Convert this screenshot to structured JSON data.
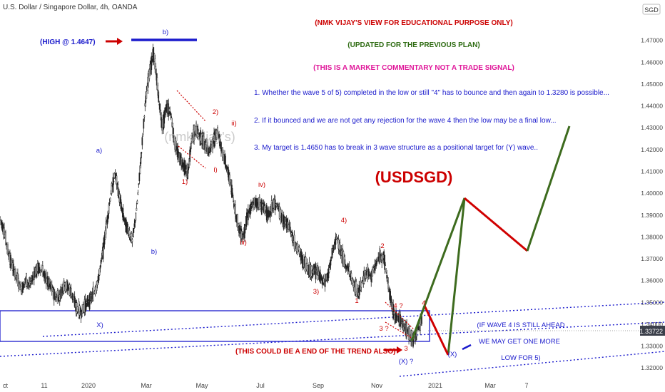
{
  "header": {
    "symbol_title": "U.S. Dollar / Singapore Dollar, 4h, OANDA",
    "currency_badge": "SGD",
    "current_price": "1.33722"
  },
  "notes": {
    "educational": "(NMK VIJAY'S VIEW FOR EDUCATIONAL PURPOSE ONLY)",
    "updated": "(UPDATED FOR THE PREVIOUS PLAN)",
    "commentary": "(THIS IS A MARKET COMMENTARY NOT A TRADE SIGNAL)",
    "point1": "1. Whether the wave 5 of 5) completed in the low or still \"4\" has to bounce and then again to 1.3280 is possible...",
    "point2": "2. If it bounced  and we are not get any rejection for the wave 4 then the low may be a final low...",
    "point3": "3. My target is 1.4650 has to break in 3 wave structure as a positional target for (Y) wave..",
    "ticker": "(USDSGD)",
    "high_label": "(HIGH @ 1.4647)",
    "end_of_trend": "(THIS COULD BE A END OF THE TREND ALSO)",
    "wave4_line1": "(IF  WAVE 4 IS STILL AHEAD",
    "wave4_line2": "WE MAY GET ONE MORE",
    "wave4_line3": "LOW FOR 5)",
    "watermark": "(nmk vijay's)"
  },
  "colors": {
    "red": "#cc0000",
    "blue": "#1a1acc",
    "green": "#2e6b12",
    "magenta": "#e0189a",
    "darkgreen": "#3d6b1e",
    "candle": "#222222"
  },
  "chart_data": {
    "type": "line",
    "title": "U.S. Dollar / Singapore Dollar, 4h, OANDA",
    "x_tick_labels": [
      "ct",
      "11",
      "2020",
      "Mar",
      "May",
      "Jul",
      "Sep",
      "Nov",
      "2021",
      "Mar",
      "7"
    ],
    "y_ticks": [
      1.32,
      1.33,
      1.34,
      1.35,
      1.36,
      1.37,
      1.38,
      1.39,
      1.4,
      1.41,
      1.42,
      1.43,
      1.44,
      1.45,
      1.46,
      1.47
    ],
    "y_tick_labels": [
      "1.32000",
      "1.33000",
      "1.34000",
      "1.35000",
      "1.36000",
      "1.37000",
      "1.38000",
      "1.39000",
      "1.40000",
      "1.41000",
      "1.42000",
      "1.43000",
      "1.44000",
      "1.45000",
      "1.46000",
      "1.47000"
    ],
    "ylim": [
      1.3155,
      1.4885
    ],
    "price_path": [
      1.389,
      1.382,
      1.372,
      1.366,
      1.361,
      1.356,
      1.36,
      1.358,
      1.363,
      1.366,
      1.364,
      1.36,
      1.357,
      1.352,
      1.353,
      1.358,
      1.357,
      1.353,
      1.347,
      1.345,
      1.349,
      1.351,
      1.354,
      1.36,
      1.372,
      1.386,
      1.4,
      1.409,
      1.398,
      1.389,
      1.383,
      1.378,
      1.392,
      1.415,
      1.44,
      1.455,
      1.4647,
      1.447,
      1.43,
      1.44,
      1.437,
      1.422,
      1.417,
      1.413,
      1.409,
      1.425,
      1.429,
      1.426,
      1.422,
      1.419,
      1.424,
      1.429,
      1.42,
      1.413,
      1.405,
      1.393,
      1.384,
      1.38,
      1.39,
      1.394,
      1.396,
      1.395,
      1.393,
      1.39,
      1.395,
      1.394,
      1.389,
      1.386,
      1.384,
      1.377,
      1.374,
      1.369,
      1.366,
      1.364,
      1.365,
      1.362,
      1.359,
      1.363,
      1.374,
      1.38,
      1.372,
      1.367,
      1.364,
      1.357,
      1.354,
      1.36,
      1.364,
      1.362,
      1.367,
      1.371,
      1.371,
      1.358,
      1.347,
      1.343,
      1.342,
      1.338,
      1.335,
      1.333,
      1.338,
      1.342
    ],
    "wave_labels": [
      {
        "text": "b)",
        "color": "blue"
      },
      {
        "text": "a)",
        "color": "blue"
      },
      {
        "text": "b)",
        "color": "blue"
      },
      {
        "text": "X)",
        "color": "blue"
      },
      {
        "text": "1)",
        "color": "red"
      },
      {
        "text": "2)",
        "color": "red"
      },
      {
        "text": "ii)",
        "color": "red"
      },
      {
        "text": "i)",
        "color": "red"
      },
      {
        "text": "iii)",
        "color": "red"
      },
      {
        "text": "iv)",
        "color": "red"
      },
      {
        "text": "3)",
        "color": "red"
      },
      {
        "text": "4)",
        "color": "red"
      },
      {
        "text": "1",
        "color": "red"
      },
      {
        "text": "2",
        "color": "red"
      },
      {
        "text": "4 ?",
        "color": "red"
      },
      {
        "text": "3 ?",
        "color": "red"
      },
      {
        "text": "3",
        "color": "red"
      },
      {
        "text": "4",
        "color": "red"
      },
      {
        "text": "(X) ?",
        "color": "blue"
      },
      {
        "text": "(X)",
        "color": "blue"
      }
    ],
    "projection": {
      "green_up_1": [
        [
          1.332,
          1.395
        ]
      ],
      "red_legs": [
        1.395,
        1.371
      ],
      "green_target": 1.4258
    },
    "levels": {
      "high": 1.4647,
      "box_top": 1.3455,
      "box_bottom": 1.333,
      "current": 1.33722
    }
  }
}
